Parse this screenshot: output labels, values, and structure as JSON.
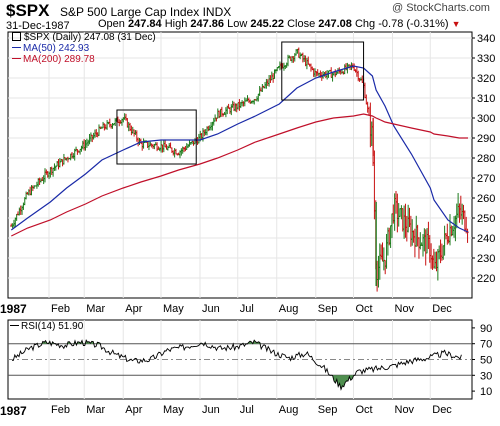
{
  "header": {
    "symbol": "$SPX",
    "name": "S&P 500 Large Cap Index",
    "exchange": "INDX",
    "watermark": "@ StockCharts.com",
    "date": "31-Dec-1987",
    "open_label": "Open",
    "open": "247.84",
    "high_label": "High",
    "high": "247.86",
    "low_label": "Low",
    "low": "245.22",
    "close_label": "Close",
    "close": "247.08",
    "chg_label": "Chg",
    "chg": "-0.78 (-0.31%)"
  },
  "colors": {
    "ma50": "#1a2aa8",
    "ma200": "#c0102a",
    "up": "#1a7a1a",
    "down": "#c81010",
    "rsi_fill": "#4f8f4f"
  },
  "chart_data": [
    {
      "type": "line",
      "title": "",
      "x": [
        "1987-01-02",
        "1987-01-15",
        "1987-02-02",
        "1987-02-15",
        "1987-03-02",
        "1987-03-15",
        "1987-04-01",
        "1987-04-15",
        "1987-05-01",
        "1987-05-15",
        "1987-06-01",
        "1987-06-15",
        "1987-07-01",
        "1987-07-15",
        "1987-08-03",
        "1987-08-17",
        "1987-09-01",
        "1987-09-15",
        "1987-10-01",
        "1987-10-09",
        "1987-10-16",
        "1987-10-19",
        "1987-10-26",
        "1987-11-02",
        "1987-11-16",
        "1987-12-01",
        "1987-12-04",
        "1987-12-15",
        "1987-12-24",
        "1987-12-31"
      ],
      "series": [
        {
          "name": "$SPX (Daily) 247.08 (31 Dec)",
          "values": [
            246,
            262,
            274,
            280,
            287,
            295,
            300,
            287,
            286,
            283,
            290,
            302,
            306,
            310,
            325,
            333,
            322,
            322,
            326,
            316,
            290,
            224,
            230,
            255,
            243,
            235,
            223,
            243,
            253,
            247
          ]
        },
        {
          "name": "MA(50) 242.93",
          "values": [
            244,
            250,
            258,
            265,
            272,
            279,
            284,
            288,
            289,
            289,
            289,
            292,
            297,
            301,
            307,
            315,
            320,
            323,
            326,
            325,
            321,
            314,
            306,
            296,
            282,
            265,
            259,
            249,
            245,
            243
          ]
        },
        {
          "name": "MA(200) 289.78",
          "values": [
            241,
            245,
            249,
            253,
            257,
            261,
            265,
            268,
            271,
            274,
            277,
            280,
            284,
            288,
            292,
            295,
            298,
            300,
            301,
            302,
            301,
            300,
            298,
            297,
            295,
            293,
            292,
            291,
            290,
            290
          ]
        }
      ],
      "boxes": [
        {
          "x0": "1987-03-27",
          "x1": "1987-05-29",
          "y0": 277,
          "y1": 304
        },
        {
          "x0": "1987-08-05",
          "x1": "1987-10-09",
          "y0": 309,
          "y1": 338
        }
      ],
      "ylim": [
        210,
        343
      ],
      "yticks": [
        220,
        230,
        240,
        250,
        260,
        270,
        280,
        290,
        300,
        310,
        320,
        330,
        340
      ],
      "months": [
        "Feb",
        "Mar",
        "Apr",
        "May",
        "Jun",
        "Jul",
        "Aug",
        "Sep",
        "Oct",
        "Nov",
        "Dec"
      ],
      "year_label": "1987",
      "grid": true
    },
    {
      "type": "line",
      "title": "",
      "series": [
        {
          "name": "RSI(14) 51.90",
          "values": [
            50,
            64,
            72,
            68,
            72,
            68,
            56,
            48,
            50,
            62,
            66,
            72,
            64,
            66,
            72,
            60,
            52,
            58,
            40,
            16,
            35,
            38,
            42,
            48,
            52,
            58,
            52
          ]
        }
      ],
      "ylim": [
        0,
        100
      ],
      "yticks": [
        10,
        30,
        50,
        70,
        90
      ],
      "reference_lines": [
        30,
        50,
        70
      ],
      "months": [
        "Feb",
        "Mar",
        "Apr",
        "May",
        "Jun",
        "Jul",
        "Aug",
        "Sep",
        "Oct",
        "Nov",
        "Dec"
      ],
      "year_label": "1987"
    }
  ]
}
